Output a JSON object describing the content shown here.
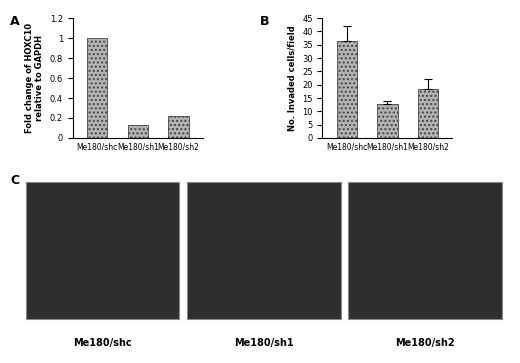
{
  "chart_data": [
    {
      "type": "bar",
      "title": "A",
      "y_label": "Fold change of HOXC10\nrelative to GAPDH",
      "categories": [
        "Me180/shc",
        "Me180/sh1",
        "Me180/sh2"
      ],
      "values": [
        1,
        0.13,
        0.22
      ],
      "color": "#b3b3b3",
      "ylim": [
        0,
        1.2
      ],
      "yticks": [
        0,
        0.2,
        0.4,
        0.6,
        0.8,
        1,
        1.2
      ],
      "grid": false
    },
    {
      "type": "bar",
      "title": "B",
      "y_label": "No. Invaded cells/field",
      "categories": [
        "Me180/shc",
        "Me180/sh1",
        "Me180/sh2"
      ],
      "values": [
        36.5,
        12.8,
        18.3
      ],
      "errors": [
        5.5,
        1.2,
        3.8
      ],
      "color": "#b3b3b3",
      "ylim": [
        0,
        45
      ],
      "yticks": [
        0,
        5,
        10,
        15,
        20,
        25,
        30,
        35,
        40,
        45
      ],
      "grid": false
    },
    {
      "type": "image",
      "title": "C",
      "categories": [
        "Me180/shc",
        "Me180/sh1",
        "Me180/sh2"
      ],
      "color": "#2e2e2e"
    }
  ]
}
